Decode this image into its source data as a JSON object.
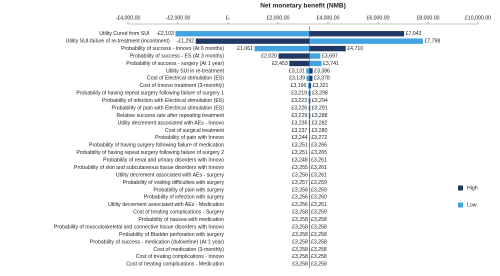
{
  "chart_data": {
    "type": "tornado",
    "x_label": "Net monetary benefit (NMB)",
    "xlim": [
      -4000,
      10000
    ],
    "xticks": [
      {
        "value": -4000,
        "label": "-£4,000.00"
      },
      {
        "value": -2000,
        "label": "-£2,000.00"
      },
      {
        "value": 0,
        "label": "£-"
      },
      {
        "value": 2000,
        "label": "£2,000.00"
      },
      {
        "value": 4000,
        "label": "£4,000.00"
      },
      {
        "value": 6000,
        "label": "£6,000.00"
      },
      {
        "value": 8000,
        "label": "£8,000.00"
      },
      {
        "value": 10000,
        "label": "£10,000.00"
      }
    ],
    "base_value": 3258,
    "legend": "right",
    "categories": [
      "Utility Cured from SUI",
      "Utility SUI-failure of re-treatment (incontinent)",
      "Probability of success - Innovo (At 6 months)",
      "Probability of success - ES (At 3 months)",
      "Probability of success - surgery (At 1 year)",
      "Utility SUI in re-treatment",
      "Cost of Electrical stimulation (ES)",
      "Cost of Innovo treatment (3-monthly)",
      "Probability of having repeat surgery following failure of surgery 1",
      "Probability of infection with Electrical stimulation (ES)",
      "Probability of pain with Electrical stimulation (ES)",
      "Relative success rate after repeating treatment",
      "Utility decrement associated with AEs - Innovo",
      "Cost of surgical treatment",
      "Probability of pain with Innovo",
      "Probability of having surgery following failure of medication",
      "Probability of having repeat surgery following failure of surgery 2",
      "Probability of renal and urinary disorders with Innovo",
      "Probability of skin and subcutaneous tissue disorders with Innovo",
      "Utility decrement associated with AEs - surgery",
      "Probability of voiding difficulties with surgery",
      "Probability of pain with surgery",
      "Probability of infection with surgery",
      "Utility decrement associated with AEs - Medication",
      "Cost of treating complications - Surgery",
      "Probability of nausea with medication",
      "Probability of musculoskeletal and connective tissue disorders with Innovo",
      "Probability of Bladder perforation with surgery",
      "Probability of success - medication (duloxetine) (At 1 year)",
      "Cost of medication (3-monthly)",
      "Cost of treating complications - Innovo",
      "Cost of treating complications - Medication"
    ],
    "series": [
      {
        "name": "High",
        "color": "#1f3864",
        "values": [
          7043,
          -1292,
          4710,
          2020,
          2453,
          3386,
          3378,
          3321,
          3298,
          3294,
          3291,
          3288,
          3282,
          3280,
          3272,
          3266,
          3265,
          3261,
          3261,
          3261,
          3259,
          3259,
          3260,
          3261,
          3259,
          3258,
          3258,
          3258,
          3258,
          3258,
          3258,
          3258
        ],
        "value_labels": [
          "£7,043",
          "-£1,292",
          "£4,710",
          "£2,020",
          "£2,453",
          "£3,386",
          "£3,378",
          "£3,321",
          "£3,298",
          "£3,294",
          "£3,291",
          "£3,288",
          "£3,282",
          "£3,280",
          "£3,272",
          "£3,266",
          "£3,265",
          "£3,261",
          "£3,261",
          "£3,261",
          "£3,259",
          "£3,259",
          "£3,260",
          "£3,261",
          "£3,259",
          "£3,258",
          "£3,258",
          "£3,258",
          "£3,258",
          "£3,258",
          "£3,258",
          "£3,258"
        ]
      },
      {
        "name": "Low",
        "color": "#41a3e0",
        "values": [
          -2103,
          7798,
          1061,
          3697,
          3741,
          3131,
          3139,
          3196,
          3219,
          3223,
          3226,
          3229,
          3235,
          3237,
          3244,
          3251,
          3251,
          3248,
          3255,
          3256,
          3257,
          3256,
          3256,
          3256,
          3258,
          3258,
          3258,
          3258,
          3258,
          3258,
          3258,
          3258
        ],
        "value_labels": [
          "-£2,103",
          "£7,798",
          "£1,061",
          "£3,697",
          "£3,741",
          "£3,131",
          "£3,139",
          "£3,196",
          "£3,219",
          "£3,223",
          "£3,226",
          "£3,229",
          "£3,235",
          "£3,237",
          "£3,244",
          "£3,251",
          "£3,251",
          "£3,248",
          "£3,255",
          "£3,256",
          "£3,257",
          "£3,256",
          "£3,256",
          "£3,256",
          "£3,258",
          "£3,258",
          "£3,258",
          "£3,258",
          "£3,258",
          "£3,258",
          "£3,258",
          "£3,258"
        ]
      }
    ]
  }
}
